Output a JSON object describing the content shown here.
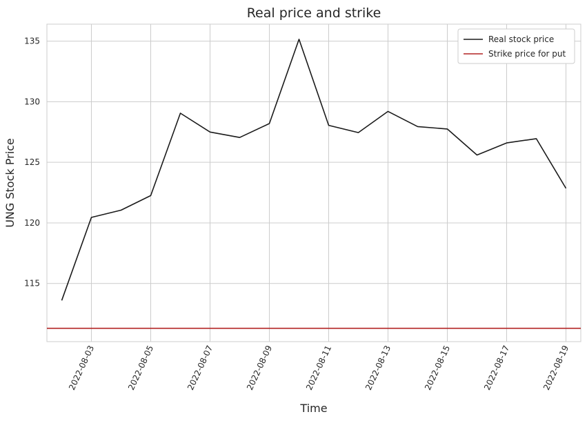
{
  "chart_data": {
    "type": "line",
    "title": "Real price and strike",
    "xlabel": "Time",
    "ylabel": "UNG Stock Price",
    "x": [
      "2022-08-02",
      "2022-08-03",
      "2022-08-04",
      "2022-08-05",
      "2022-08-06",
      "2022-08-07",
      "2022-08-08",
      "2022-08-09",
      "2022-08-10",
      "2022-08-11",
      "2022-08-12",
      "2022-08-13",
      "2022-08-14",
      "2022-08-15",
      "2022-08-16",
      "2022-08-17",
      "2022-08-18",
      "2022-08-19"
    ],
    "x_tick_labels": [
      "2022-08-03",
      "2022-08-05",
      "2022-08-07",
      "2022-08-09",
      "2022-08-11",
      "2022-08-13",
      "2022-08-15",
      "2022-08-17",
      "2022-08-19"
    ],
    "y_ticks": [
      115,
      120,
      125,
      130,
      135
    ],
    "ylim": [
      110.2,
      136.4
    ],
    "grid": true,
    "legend_position": "top-right",
    "series": [
      {
        "name": "Real stock price",
        "color": "#1a1a1a",
        "values": [
          113.6,
          120.45,
          121.05,
          122.25,
          129.05,
          127.5,
          127.05,
          128.2,
          135.15,
          128.05,
          127.45,
          129.2,
          127.95,
          127.75,
          125.6,
          126.6,
          126.95,
          122.85
        ]
      },
      {
        "name": "Strike price for put",
        "color": "#b22222",
        "constant": 111.3
      }
    ]
  }
}
